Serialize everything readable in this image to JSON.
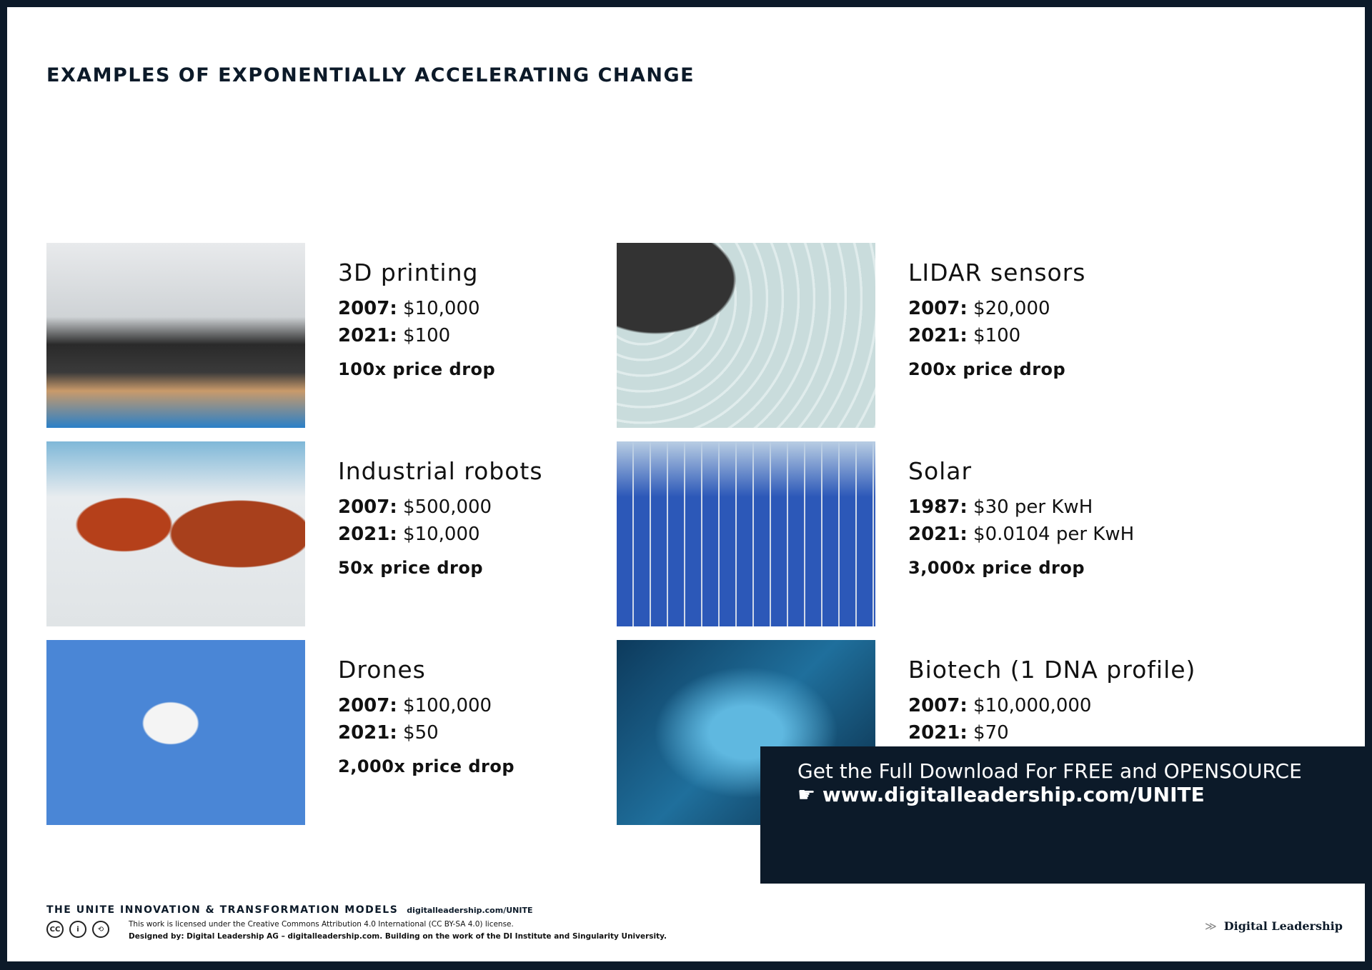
{
  "title": "EXAMPLES OF EXPONENTIALLY ACCELERATING CHANGE",
  "examples": [
    {
      "name": "3D printing",
      "y1": "2007:",
      "v1": "$10,000",
      "y2": "2021:",
      "v2": "$100",
      "drop": "100x price drop",
      "image": "3d-printers-photo"
    },
    {
      "name": "Industrial robots",
      "y1": "2007:",
      "v1": "$500,000",
      "y2": "2021:",
      "v2": "$10,000",
      "drop": "50x price drop",
      "image": "robot-arms-photo"
    },
    {
      "name": "Drones",
      "y1": "2007:",
      "v1": "$100,000",
      "y2": "2021:",
      "v2": "$50",
      "drop": "2,000x price drop",
      "image": "drone-photo"
    },
    {
      "name": "LIDAR sensors",
      "y1": "2007:",
      "v1": "$20,000",
      "y2": "2021:",
      "v2": "$100",
      "drop": "200x price drop",
      "image": "lidar-car-photo"
    },
    {
      "name": "Solar",
      "y1": "1987:",
      "v1": "$30 per KwH",
      "y2": "2021:",
      "v2": "$0.0104 per KwH",
      "drop": "3,000x price drop",
      "image": "solar-panels-photo"
    },
    {
      "name": "Biotech (1 DNA profile)",
      "y1": "2007:",
      "v1": "$10,000,000",
      "y2": "2021:",
      "v2": "$70",
      "drop": "",
      "image": "dna-photo"
    }
  ],
  "banner": {
    "line1": "Get the Full Download For FREE and OPENSOURCE",
    "icon": "pointing-hand-icon",
    "hand": "☛",
    "url": "www.digitalleadership.com/UNITE"
  },
  "footer": {
    "title": "THE UNITE INNOVATION & TRANSFORMATION MODELS",
    "link": "digitalleadership.com/UNITE",
    "cc_icons": [
      "CC",
      "i",
      "⟲"
    ],
    "license": "This work is licensed under the Creative Commons Attribution 4.0 International (CC BY-SA 4.0) license.",
    "designed": "Designed by: Digital Leadership AG – digitalleadership.com. Building on the work of the DI Institute and Singularity University.",
    "logo": "Digital Leadership",
    "logo_mark": "≫"
  }
}
